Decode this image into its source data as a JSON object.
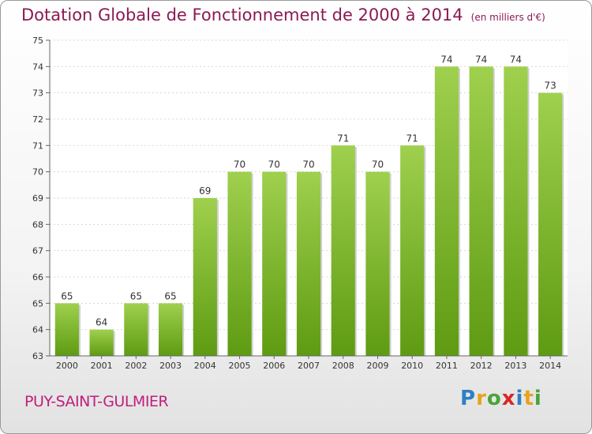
{
  "title": "Dotation Globale de Fonctionnement de 2000 à 2014",
  "unit_note": "(en milliers d'€)",
  "commune": "PUY-SAINT-GULMIER",
  "logo_text": "Proxiti",
  "colors": {
    "title": "#8b1a54",
    "commune": "#c0207a",
    "bar_top": "#9fd04e",
    "bar_bottom": "#5e9b12"
  },
  "chart_data": {
    "type": "bar",
    "categories": [
      "2000",
      "2001",
      "2002",
      "2003",
      "2004",
      "2005",
      "2006",
      "2007",
      "2008",
      "2009",
      "2010",
      "2011",
      "2012",
      "2013",
      "2014"
    ],
    "values": [
      65,
      64,
      65,
      65,
      69,
      70,
      70,
      70,
      71,
      70,
      71,
      74,
      74,
      74,
      73
    ],
    "ylim": [
      63,
      75
    ],
    "yticks": [
      63,
      64,
      65,
      66,
      67,
      68,
      69,
      70,
      71,
      72,
      73,
      74,
      75
    ],
    "grid": true,
    "data_labels": true
  }
}
